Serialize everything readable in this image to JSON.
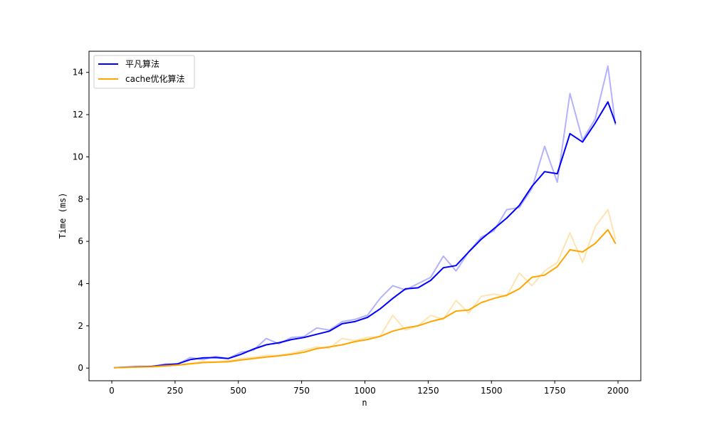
{
  "chart_data": {
    "type": "line",
    "title": "",
    "xlabel": "n",
    "ylabel": "Time (ms)",
    "xlim": [
      -90,
      2090
    ],
    "ylim": [
      -0.6,
      15.0
    ],
    "xticks": [
      0,
      250,
      500,
      750,
      1000,
      1250,
      1500,
      1750,
      2000
    ],
    "yticks": [
      0,
      2,
      4,
      6,
      8,
      10,
      12,
      14
    ],
    "grid": false,
    "legend_position": "top-left",
    "series": [
      {
        "name": "平凡算法",
        "color": "#0000ff",
        "raw_alpha": 0.3,
        "x": [
          10,
          60,
          110,
          160,
          210,
          260,
          310,
          360,
          410,
          460,
          510,
          560,
          610,
          660,
          710,
          760,
          810,
          860,
          910,
          960,
          1010,
          1060,
          1110,
          1160,
          1210,
          1260,
          1310,
          1360,
          1410,
          1460,
          1510,
          1560,
          1610,
          1660,
          1710,
          1760,
          1810,
          1860,
          1910,
          1960,
          1990
        ],
        "raw": [
          0.02,
          0.05,
          0.08,
          0.07,
          0.2,
          0.18,
          0.5,
          0.4,
          0.55,
          0.45,
          0.75,
          0.85,
          1.4,
          1.15,
          1.45,
          1.5,
          1.9,
          1.8,
          2.2,
          2.3,
          2.5,
          3.3,
          3.9,
          3.7,
          4.0,
          4.3,
          5.3,
          4.6,
          5.5,
          6.2,
          6.5,
          7.5,
          7.6,
          8.5,
          10.5,
          8.8,
          13.0,
          10.8,
          11.8,
          14.3,
          11.5
        ],
        "smoothed": [
          0.02,
          0.04,
          0.06,
          0.08,
          0.15,
          0.2,
          0.4,
          0.48,
          0.5,
          0.45,
          0.65,
          0.9,
          1.1,
          1.2,
          1.35,
          1.45,
          1.6,
          1.75,
          2.1,
          2.2,
          2.4,
          2.8,
          3.3,
          3.75,
          3.8,
          4.15,
          4.75,
          4.85,
          5.5,
          6.1,
          6.6,
          7.1,
          7.7,
          8.6,
          9.3,
          9.2,
          11.1,
          10.7,
          11.6,
          12.6,
          11.6
        ]
      },
      {
        "name": "cache优化算法",
        "color": "#ffa500",
        "raw_alpha": 0.3,
        "x": [
          10,
          60,
          110,
          160,
          210,
          260,
          310,
          360,
          410,
          460,
          510,
          560,
          610,
          660,
          710,
          760,
          810,
          860,
          910,
          960,
          1010,
          1060,
          1110,
          1160,
          1210,
          1260,
          1310,
          1360,
          1410,
          1460,
          1510,
          1560,
          1610,
          1660,
          1710,
          1760,
          1810,
          1860,
          1910,
          1960,
          1990
        ],
        "raw": [
          0.02,
          0.03,
          0.05,
          0.07,
          0.12,
          0.15,
          0.22,
          0.3,
          0.28,
          0.35,
          0.45,
          0.5,
          0.6,
          0.6,
          0.7,
          0.85,
          1.0,
          0.95,
          1.4,
          1.3,
          1.45,
          1.5,
          2.5,
          1.8,
          2.0,
          2.5,
          2.3,
          3.2,
          2.6,
          3.4,
          3.5,
          3.4,
          4.5,
          3.9,
          4.6,
          5.0,
          6.4,
          5.0,
          6.7,
          7.5,
          6.1
        ],
        "smoothed": [
          0.02,
          0.03,
          0.05,
          0.06,
          0.1,
          0.14,
          0.2,
          0.26,
          0.28,
          0.3,
          0.38,
          0.45,
          0.52,
          0.58,
          0.65,
          0.75,
          0.92,
          1.0,
          1.1,
          1.25,
          1.35,
          1.5,
          1.75,
          1.9,
          2.0,
          2.2,
          2.35,
          2.7,
          2.75,
          3.1,
          3.3,
          3.45,
          3.75,
          4.3,
          4.4,
          4.8,
          5.6,
          5.5,
          5.9,
          6.55,
          5.9
        ]
      }
    ]
  }
}
